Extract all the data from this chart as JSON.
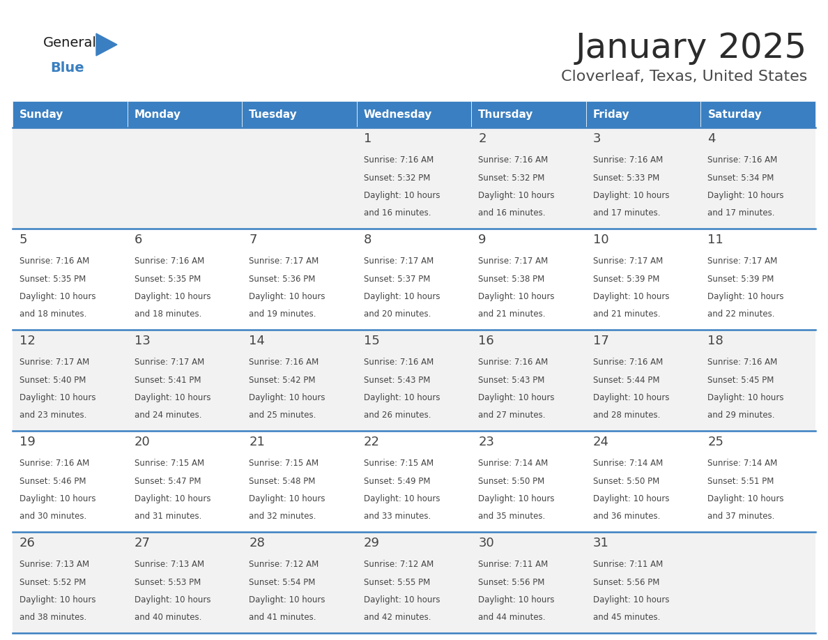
{
  "title": "January 2025",
  "subtitle": "Cloverleaf, Texas, United States",
  "header_color": "#3A7FC1",
  "header_text_color": "#FFFFFF",
  "cell_bg_light": "#F2F2F2",
  "cell_bg_white": "#FFFFFF",
  "border_color": "#3A7FC1",
  "text_color": "#444444",
  "day_names": [
    "Sunday",
    "Monday",
    "Tuesday",
    "Wednesday",
    "Thursday",
    "Friday",
    "Saturday"
  ],
  "days_data": [
    {
      "day": 1,
      "col": 3,
      "row": 0,
      "sunrise": "7:16 AM",
      "sunset": "5:32 PM",
      "daylight_line1": "Daylight: 10 hours",
      "daylight_line2": "and 16 minutes."
    },
    {
      "day": 2,
      "col": 4,
      "row": 0,
      "sunrise": "7:16 AM",
      "sunset": "5:32 PM",
      "daylight_line1": "Daylight: 10 hours",
      "daylight_line2": "and 16 minutes."
    },
    {
      "day": 3,
      "col": 5,
      "row": 0,
      "sunrise": "7:16 AM",
      "sunset": "5:33 PM",
      "daylight_line1": "Daylight: 10 hours",
      "daylight_line2": "and 17 minutes."
    },
    {
      "day": 4,
      "col": 6,
      "row": 0,
      "sunrise": "7:16 AM",
      "sunset": "5:34 PM",
      "daylight_line1": "Daylight: 10 hours",
      "daylight_line2": "and 17 minutes."
    },
    {
      "day": 5,
      "col": 0,
      "row": 1,
      "sunrise": "7:16 AM",
      "sunset": "5:35 PM",
      "daylight_line1": "Daylight: 10 hours",
      "daylight_line2": "and 18 minutes."
    },
    {
      "day": 6,
      "col": 1,
      "row": 1,
      "sunrise": "7:16 AM",
      "sunset": "5:35 PM",
      "daylight_line1": "Daylight: 10 hours",
      "daylight_line2": "and 18 minutes."
    },
    {
      "day": 7,
      "col": 2,
      "row": 1,
      "sunrise": "7:17 AM",
      "sunset": "5:36 PM",
      "daylight_line1": "Daylight: 10 hours",
      "daylight_line2": "and 19 minutes."
    },
    {
      "day": 8,
      "col": 3,
      "row": 1,
      "sunrise": "7:17 AM",
      "sunset": "5:37 PM",
      "daylight_line1": "Daylight: 10 hours",
      "daylight_line2": "and 20 minutes."
    },
    {
      "day": 9,
      "col": 4,
      "row": 1,
      "sunrise": "7:17 AM",
      "sunset": "5:38 PM",
      "daylight_line1": "Daylight: 10 hours",
      "daylight_line2": "and 21 minutes."
    },
    {
      "day": 10,
      "col": 5,
      "row": 1,
      "sunrise": "7:17 AM",
      "sunset": "5:39 PM",
      "daylight_line1": "Daylight: 10 hours",
      "daylight_line2": "and 21 minutes."
    },
    {
      "day": 11,
      "col": 6,
      "row": 1,
      "sunrise": "7:17 AM",
      "sunset": "5:39 PM",
      "daylight_line1": "Daylight: 10 hours",
      "daylight_line2": "and 22 minutes."
    },
    {
      "day": 12,
      "col": 0,
      "row": 2,
      "sunrise": "7:17 AM",
      "sunset": "5:40 PM",
      "daylight_line1": "Daylight: 10 hours",
      "daylight_line2": "and 23 minutes."
    },
    {
      "day": 13,
      "col": 1,
      "row": 2,
      "sunrise": "7:17 AM",
      "sunset": "5:41 PM",
      "daylight_line1": "Daylight: 10 hours",
      "daylight_line2": "and 24 minutes."
    },
    {
      "day": 14,
      "col": 2,
      "row": 2,
      "sunrise": "7:16 AM",
      "sunset": "5:42 PM",
      "daylight_line1": "Daylight: 10 hours",
      "daylight_line2": "and 25 minutes."
    },
    {
      "day": 15,
      "col": 3,
      "row": 2,
      "sunrise": "7:16 AM",
      "sunset": "5:43 PM",
      "daylight_line1": "Daylight: 10 hours",
      "daylight_line2": "and 26 minutes."
    },
    {
      "day": 16,
      "col": 4,
      "row": 2,
      "sunrise": "7:16 AM",
      "sunset": "5:43 PM",
      "daylight_line1": "Daylight: 10 hours",
      "daylight_line2": "and 27 minutes."
    },
    {
      "day": 17,
      "col": 5,
      "row": 2,
      "sunrise": "7:16 AM",
      "sunset": "5:44 PM",
      "daylight_line1": "Daylight: 10 hours",
      "daylight_line2": "and 28 minutes."
    },
    {
      "day": 18,
      "col": 6,
      "row": 2,
      "sunrise": "7:16 AM",
      "sunset": "5:45 PM",
      "daylight_line1": "Daylight: 10 hours",
      "daylight_line2": "and 29 minutes."
    },
    {
      "day": 19,
      "col": 0,
      "row": 3,
      "sunrise": "7:16 AM",
      "sunset": "5:46 PM",
      "daylight_line1": "Daylight: 10 hours",
      "daylight_line2": "and 30 minutes."
    },
    {
      "day": 20,
      "col": 1,
      "row": 3,
      "sunrise": "7:15 AM",
      "sunset": "5:47 PM",
      "daylight_line1": "Daylight: 10 hours",
      "daylight_line2": "and 31 minutes."
    },
    {
      "day": 21,
      "col": 2,
      "row": 3,
      "sunrise": "7:15 AM",
      "sunset": "5:48 PM",
      "daylight_line1": "Daylight: 10 hours",
      "daylight_line2": "and 32 minutes."
    },
    {
      "day": 22,
      "col": 3,
      "row": 3,
      "sunrise": "7:15 AM",
      "sunset": "5:49 PM",
      "daylight_line1": "Daylight: 10 hours",
      "daylight_line2": "and 33 minutes."
    },
    {
      "day": 23,
      "col": 4,
      "row": 3,
      "sunrise": "7:14 AM",
      "sunset": "5:50 PM",
      "daylight_line1": "Daylight: 10 hours",
      "daylight_line2": "and 35 minutes."
    },
    {
      "day": 24,
      "col": 5,
      "row": 3,
      "sunrise": "7:14 AM",
      "sunset": "5:50 PM",
      "daylight_line1": "Daylight: 10 hours",
      "daylight_line2": "and 36 minutes."
    },
    {
      "day": 25,
      "col": 6,
      "row": 3,
      "sunrise": "7:14 AM",
      "sunset": "5:51 PM",
      "daylight_line1": "Daylight: 10 hours",
      "daylight_line2": "and 37 minutes."
    },
    {
      "day": 26,
      "col": 0,
      "row": 4,
      "sunrise": "7:13 AM",
      "sunset": "5:52 PM",
      "daylight_line1": "Daylight: 10 hours",
      "daylight_line2": "and 38 minutes."
    },
    {
      "day": 27,
      "col": 1,
      "row": 4,
      "sunrise": "7:13 AM",
      "sunset": "5:53 PM",
      "daylight_line1": "Daylight: 10 hours",
      "daylight_line2": "and 40 minutes."
    },
    {
      "day": 28,
      "col": 2,
      "row": 4,
      "sunrise": "7:12 AM",
      "sunset": "5:54 PM",
      "daylight_line1": "Daylight: 10 hours",
      "daylight_line2": "and 41 minutes."
    },
    {
      "day": 29,
      "col": 3,
      "row": 4,
      "sunrise": "7:12 AM",
      "sunset": "5:55 PM",
      "daylight_line1": "Daylight: 10 hours",
      "daylight_line2": "and 42 minutes."
    },
    {
      "day": 30,
      "col": 4,
      "row": 4,
      "sunrise": "7:11 AM",
      "sunset": "5:56 PM",
      "daylight_line1": "Daylight: 10 hours",
      "daylight_line2": "and 44 minutes."
    },
    {
      "day": 31,
      "col": 5,
      "row": 4,
      "sunrise": "7:11 AM",
      "sunset": "5:56 PM",
      "daylight_line1": "Daylight: 10 hours",
      "daylight_line2": "and 45 minutes."
    }
  ],
  "logo_color_general": "#1A1A1A",
  "logo_color_blue": "#3A7FC1",
  "title_color": "#2B2B2B",
  "subtitle_color": "#4A4A4A"
}
